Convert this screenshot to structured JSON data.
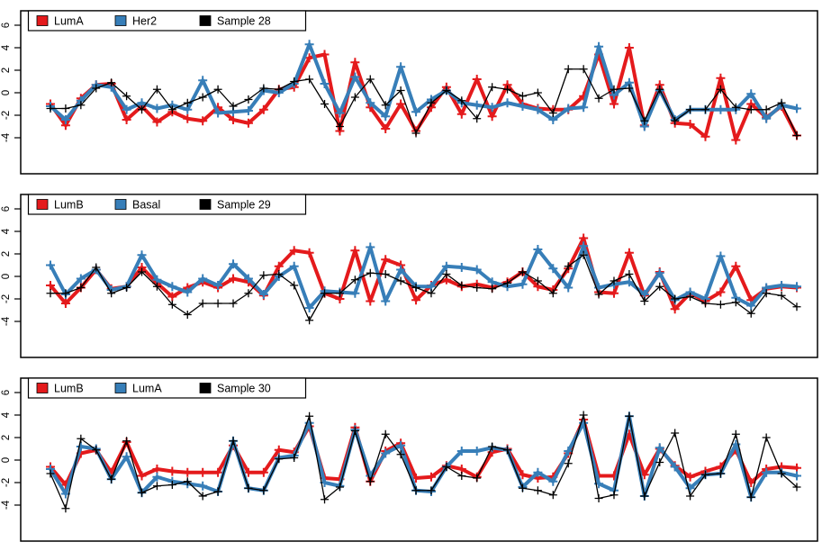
{
  "page": {
    "background": "#ffffff",
    "axis_color": "#000000"
  },
  "chart_data": [
    {
      "type": "line",
      "title": "",
      "xlabel": "",
      "ylabel": "",
      "legend_position": "top-left",
      "legend": [
        "LumA",
        "Her2",
        "Sample 28"
      ],
      "yticks": [
        6,
        4,
        2,
        0,
        -2,
        -4
      ],
      "ylim": [
        -7.1,
        7.3
      ],
      "grid": false,
      "marker": "plus",
      "series": [
        {
          "name": "LumA",
          "color": "#e41a1c",
          "thick": true,
          "values": [
            -1.0,
            -2.9,
            -0.5,
            0.7,
            0.8,
            -2.4,
            -1.2,
            -2.6,
            -1.7,
            -2.3,
            -2.5,
            -1.3,
            -2.4,
            -2.7,
            -1.5,
            0.3,
            0.5,
            3.1,
            3.4,
            -3.4,
            2.7,
            -1.3,
            -3.2,
            -1.0,
            -3.4,
            -1.3,
            0.5,
            -1.9,
            1.2,
            -2.1,
            0.7,
            -1.0,
            -1.4,
            -1.5,
            -1.5,
            -0.3,
            3.4,
            -1.0,
            4.0,
            -2.9,
            0.7,
            -2.7,
            -2.8,
            -3.9,
            1.3,
            -4.2,
            -1.0,
            -2.2,
            -1.2,
            -3.8
          ]
        },
        {
          "name": "Her2",
          "color": "#377eb8",
          "thick": true,
          "values": [
            -1.2,
            -2.4,
            -0.7,
            0.7,
            0.5,
            -1.5,
            -0.9,
            -1.4,
            -1.1,
            -1.5,
            1.1,
            -1.8,
            -1.7,
            -1.6,
            0.2,
            0.0,
            0.8,
            4.3,
            0.8,
            -1.8,
            1.4,
            -0.9,
            -2.1,
            2.3,
            -1.7,
            -0.6,
            0.2,
            -0.9,
            -1.1,
            -1.3,
            -0.9,
            -1.2,
            -1.5,
            -2.4,
            -1.4,
            -1.3,
            4.1,
            -0.2,
            0.9,
            -3.0,
            0.2,
            -2.4,
            -1.5,
            -1.5,
            -1.5,
            -1.5,
            -0.1,
            -2.3,
            -1.1,
            -1.4
          ]
        },
        {
          "name": "Sample 28",
          "color": "#000000",
          "thick": false,
          "values": [
            -1.4,
            -1.4,
            -1.1,
            0.4,
            0.9,
            -0.3,
            -1.5,
            0.3,
            -1.5,
            -0.9,
            -0.4,
            0.3,
            -1.2,
            -0.6,
            0.4,
            0.3,
            1.0,
            1.2,
            -1.0,
            -3.0,
            -0.4,
            1.2,
            -1.1,
            0.2,
            -3.6,
            -0.9,
            0.2,
            -0.7,
            -2.3,
            0.5,
            0.3,
            -0.3,
            0.0,
            -1.8,
            2.1,
            2.1,
            -0.5,
            0.3,
            0.4,
            -2.5,
            0.3,
            -2.5,
            -1.5,
            -1.5,
            0.3,
            -1.3,
            -1.5,
            -1.5,
            -0.9,
            -3.8
          ]
        }
      ]
    },
    {
      "type": "line",
      "title": "",
      "xlabel": "",
      "ylabel": "",
      "legend_position": "top-left",
      "legend": [
        "LumB",
        "Basal",
        "Sample 29"
      ],
      "yticks": [
        6,
        4,
        2,
        0,
        -2,
        -4
      ],
      "ylim": [
        -7.1,
        7.3
      ],
      "grid": false,
      "marker": "plus",
      "series": [
        {
          "name": "LumB",
          "color": "#e41a1c",
          "thick": true,
          "values": [
            -0.8,
            -2.4,
            -1.0,
            0.6,
            -1.1,
            -0.9,
            0.8,
            -0.6,
            -1.8,
            -1.0,
            -0.5,
            -1.0,
            -0.2,
            -0.5,
            -1.7,
            0.9,
            2.3,
            2.1,
            -1.5,
            -2.0,
            2.3,
            -2.2,
            1.5,
            1.0,
            -2.1,
            -0.8,
            -0.3,
            -0.9,
            -0.7,
            -1.0,
            -0.5,
            0.4,
            -0.9,
            -1.2,
            0.7,
            3.4,
            -1.4,
            -1.5,
            2.1,
            -1.7,
            0.4,
            -2.9,
            -1.5,
            -2.2,
            -1.4,
            0.9,
            -2.1,
            -1.1,
            -0.9,
            -1.0
          ]
        },
        {
          "name": "Basal",
          "color": "#377eb8",
          "thick": true,
          "values": [
            1.0,
            -1.6,
            -0.2,
            0.6,
            -1.2,
            -0.9,
            1.9,
            -0.3,
            -0.9,
            -1.4,
            -0.2,
            -0.8,
            1.1,
            -0.2,
            -1.6,
            0.0,
            0.9,
            -2.8,
            -1.3,
            -1.4,
            -1.5,
            2.6,
            -2.2,
            0.6,
            -0.9,
            -0.9,
            0.9,
            0.8,
            0.6,
            -0.5,
            -0.9,
            -0.7,
            2.4,
            0.7,
            -1.0,
            2.7,
            -1.0,
            -0.7,
            -0.5,
            -1.6,
            0.3,
            -2.1,
            -1.4,
            -2.0,
            1.8,
            -1.9,
            -2.6,
            -1.0,
            -0.8,
            -0.9
          ]
        },
        {
          "name": "Sample 29",
          "color": "#000000",
          "thick": false,
          "values": [
            -1.5,
            -1.5,
            -1.0,
            0.8,
            -1.5,
            -1.0,
            0.4,
            -0.9,
            -2.5,
            -3.4,
            -2.4,
            -2.4,
            -2.4,
            -1.5,
            0.1,
            0.2,
            -0.8,
            -3.9,
            -1.5,
            -1.5,
            -0.3,
            0.3,
            0.2,
            -0.4,
            -1.0,
            -1.5,
            0.2,
            -0.8,
            -1.0,
            -1.1,
            -0.6,
            0.4,
            -0.4,
            -1.5,
            0.9,
            1.9,
            -1.6,
            -0.4,
            0.2,
            -2.2,
            -0.9,
            -2.0,
            -1.8,
            -2.4,
            -2.5,
            -2.3,
            -3.3,
            -1.5,
            -1.7,
            -2.7
          ]
        }
      ]
    },
    {
      "type": "line",
      "title": "",
      "xlabel": "",
      "ylabel": "",
      "legend_position": "top-left",
      "legend": [
        "LumB",
        "LumA",
        "Sample 30"
      ],
      "yticks": [
        6,
        4,
        2,
        0,
        -2,
        -4
      ],
      "ylim": [
        -7.1,
        7.3
      ],
      "grid": false,
      "marker": "plus",
      "series": [
        {
          "name": "LumB",
          "color": "#e41a1c",
          "thick": true,
          "values": [
            -0.6,
            -2.2,
            0.6,
            0.9,
            -1.1,
            1.6,
            -1.4,
            -0.8,
            -1.0,
            -1.1,
            -1.1,
            -1.1,
            1.3,
            -1.1,
            -1.1,
            0.9,
            0.7,
            3.0,
            -1.6,
            -1.7,
            2.9,
            -1.9,
            0.8,
            1.5,
            -1.6,
            -1.5,
            -0.5,
            -0.8,
            -1.5,
            0.7,
            1.0,
            -1.3,
            -1.6,
            -1.5,
            0.6,
            3.6,
            -1.4,
            -1.4,
            2.3,
            -1.3,
            1.0,
            -0.5,
            -1.5,
            -1.0,
            -0.6,
            0.9,
            -2.0,
            -0.8,
            -0.6,
            -0.7
          ]
        },
        {
          "name": "LumA",
          "color": "#377eb8",
          "thick": true,
          "values": [
            -0.8,
            -3.0,
            1.2,
            1.0,
            -1.7,
            0.3,
            -2.9,
            -1.5,
            -1.9,
            -2.1,
            -2.3,
            -2.8,
            1.7,
            -2.5,
            -2.7,
            0.2,
            0.4,
            3.3,
            -2.0,
            -2.3,
            2.7,
            -1.4,
            0.6,
            1.3,
            -2.7,
            -2.8,
            -0.6,
            0.8,
            0.8,
            1.1,
            0.9,
            -2.4,
            -1.1,
            -1.9,
            0.8,
            3.3,
            -2.1,
            -2.7,
            3.9,
            -3.2,
            1.1,
            -0.6,
            -2.5,
            -1.3,
            -1.2,
            1.4,
            -3.3,
            -1.1,
            -1.1,
            -1.4
          ]
        },
        {
          "name": "Sample 30",
          "color": "#000000",
          "thick": false,
          "values": [
            -1.2,
            -4.3,
            1.9,
            0.9,
            -1.7,
            1.7,
            -2.9,
            -2.3,
            -2.2,
            -1.9,
            -3.2,
            -2.8,
            1.7,
            -2.5,
            -2.7,
            0.1,
            0.2,
            3.9,
            -3.5,
            -2.4,
            2.6,
            -1.9,
            2.3,
            0.5,
            -2.7,
            -2.7,
            -0.6,
            -1.4,
            -1.6,
            1.2,
            0.9,
            -2.5,
            -2.7,
            -3.1,
            -0.3,
            4.0,
            -3.4,
            -3.1,
            3.9,
            -3.2,
            -0.2,
            2.4,
            -3.2,
            -1.3,
            -1.2,
            2.3,
            -3.3,
            2.0,
            -1.2,
            -2.4
          ]
        }
      ]
    }
  ]
}
